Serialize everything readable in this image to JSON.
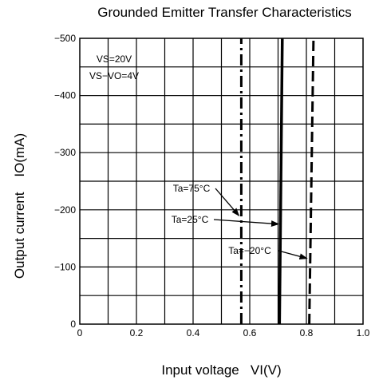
{
  "chart_data": {
    "type": "line",
    "title": "Grounded Emitter Transfer Characteristics",
    "xlabel": "Input voltage   VI(V)",
    "ylabel": "Output current    IO(mA)",
    "xlim": [
      0,
      1.0
    ],
    "ylim": [
      0,
      -500
    ],
    "x_ticks": [
      "0",
      "0.2",
      "0.4",
      "0.6",
      "0.8",
      "1.0"
    ],
    "y_ticks": [
      "0",
      "−100",
      "−200",
      "−300",
      "−400",
      "−500"
    ],
    "grid": true,
    "conditions": [
      "VS=20V",
      "VS−VO=4V"
    ],
    "series": [
      {
        "name": "Ta=75°C",
        "style": "dash-dot",
        "x": [
          0.57,
          0.57
        ],
        "y": [
          0,
          -500
        ]
      },
      {
        "name": "Ta=25°C",
        "style": "solid",
        "x": [
          0.705,
          0.715
        ],
        "y": [
          0,
          -500
        ]
      },
      {
        "name": "Ta=−20°C",
        "style": "dashed",
        "x": [
          0.81,
          0.825
        ],
        "y": [
          0,
          -500
        ]
      }
    ],
    "annotations": [
      {
        "text": "Ta=75°C",
        "target": [
          0.57,
          -190
        ]
      },
      {
        "text": "Ta=25°C",
        "target": [
          0.71,
          -175
        ]
      },
      {
        "text": "Ta=−20°C",
        "target": [
          0.81,
          -115
        ]
      }
    ]
  }
}
